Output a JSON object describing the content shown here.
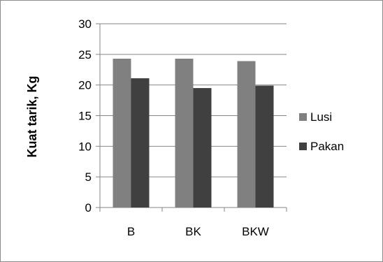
{
  "chart_data": {
    "type": "bar",
    "title": "",
    "xlabel": "",
    "ylabel": "Kuat tarik, Kg",
    "ylim": [
      0,
      30
    ],
    "yticks": [
      0,
      5,
      10,
      15,
      20,
      25,
      30
    ],
    "grid": true,
    "legend_position": "right",
    "categories": [
      "B",
      "BK",
      "BKW"
    ],
    "series": [
      {
        "name": "Lusi",
        "color": "#808080",
        "values": [
          24.3,
          24.3,
          23.9
        ]
      },
      {
        "name": "Pakan",
        "color": "#404040",
        "values": [
          21.1,
          19.5,
          19.9
        ]
      }
    ]
  }
}
